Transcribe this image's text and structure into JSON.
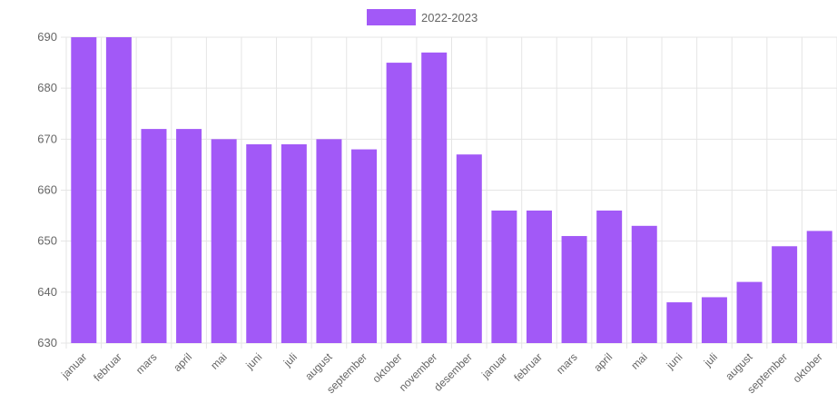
{
  "chart_data": {
    "type": "bar",
    "title": "",
    "xlabel": "",
    "ylabel": "",
    "ylim": [
      630,
      690
    ],
    "yticks": [
      630,
      640,
      650,
      660,
      670,
      680,
      690
    ],
    "grid": true,
    "legend_position": "top",
    "bar_color": "#a259f7",
    "categories": [
      "januar",
      "februar",
      "mars",
      "april",
      "mai",
      "juni",
      "juli",
      "august",
      "september",
      "oktober",
      "november",
      "desember",
      "januar",
      "februar",
      "mars",
      "april",
      "mai",
      "juni",
      "juli",
      "august",
      "september",
      "oktober"
    ],
    "series": [
      {
        "name": "2022-2023",
        "values": [
          690,
          690,
          672,
          672,
          670,
          669,
          669,
          670,
          668,
          685,
          687,
          667,
          656,
          656,
          651,
          656,
          653,
          638,
          639,
          642,
          649,
          652
        ]
      }
    ]
  }
}
